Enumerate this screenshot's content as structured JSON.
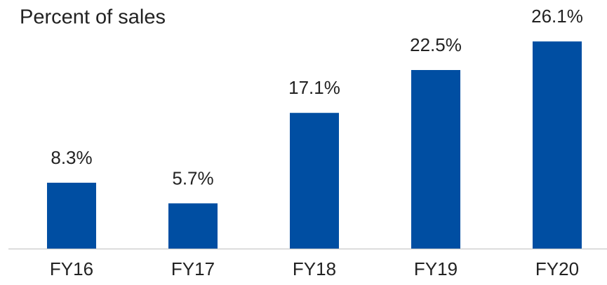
{
  "chart_data": {
    "type": "bar",
    "title": "Percent of sales",
    "categories": [
      "FY16",
      "FY17",
      "FY18",
      "FY19",
      "FY20"
    ],
    "values": [
      8.3,
      5.7,
      17.1,
      22.5,
      26.1
    ],
    "value_labels": [
      "8.3%",
      "5.7%",
      "17.1%",
      "22.5%",
      "26.1%"
    ],
    "color": "#004ea2",
    "ylim": [
      0,
      30
    ]
  }
}
